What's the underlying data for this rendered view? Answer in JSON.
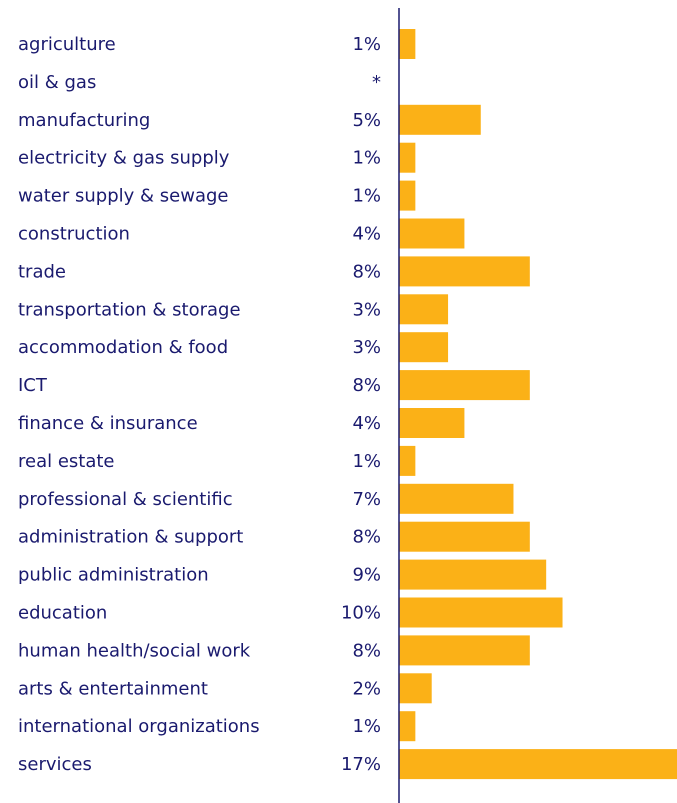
{
  "chart_data": {
    "type": "bar",
    "orientation": "horizontal",
    "categories": [
      "agriculture",
      "oil & gas",
      "manufacturing",
      "electricity & gas supply",
      "water supply & sewage",
      "construction",
      "trade",
      "transportation & storage",
      "accommodation & food",
      "ICT",
      "finance & insurance",
      "real estate",
      "professional & scientific",
      "administration & support",
      "public administration",
      "education",
      "human health/social work",
      "arts & entertainment",
      "international organizations",
      "services"
    ],
    "values": [
      1,
      0,
      5,
      1,
      1,
      4,
      8,
      3,
      3,
      8,
      4,
      1,
      7,
      8,
      9,
      10,
      8,
      2,
      1,
      17
    ],
    "value_labels": [
      "1%",
      "*",
      "5%",
      "1%",
      "1%",
      "4%",
      "8%",
      "3%",
      "3%",
      "8%",
      "4%",
      "1%",
      "7%",
      "8%",
      "9%",
      "10%",
      "8%",
      "2%",
      "1%",
      "17%"
    ],
    "unit": "%",
    "xlim": [
      0,
      17
    ],
    "grid": false,
    "bar_color": "#fbb117",
    "text_color": "#1a1a6e"
  }
}
